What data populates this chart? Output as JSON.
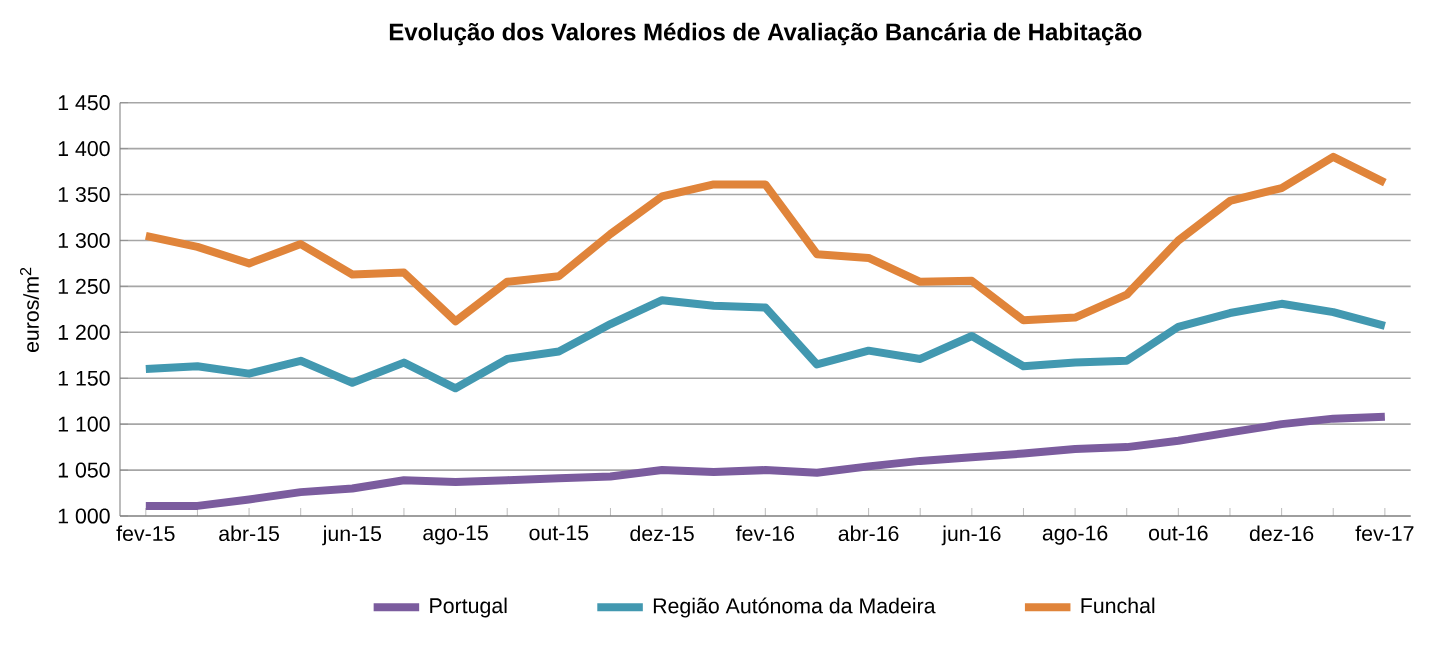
{
  "chart_data": {
    "type": "line",
    "title": "Evolução dos Valores Médios de Avaliação Bancária de Habitação",
    "ylabel": "euros/m$^{2}$",
    "categories": [
      "fev-15",
      null,
      "abr-15",
      null,
      "jun-15",
      null,
      "ago-15",
      null,
      "out-15",
      null,
      "dez-15",
      null,
      "fev-16",
      null,
      "abr-16",
      null,
      "jun-16",
      null,
      "ago-16",
      null,
      "out-16",
      null,
      "dez-16",
      null,
      "fev-17"
    ],
    "series": [
      {
        "name": "Portugal",
        "color": "#7b5c9e",
        "values": [
          1011,
          1011,
          1018,
          1026,
          1030,
          1039,
          1037,
          1039,
          1041,
          1043,
          1050,
          1048,
          1050,
          1047,
          1054,
          1060,
          1064,
          1068,
          1073,
          1075,
          1082,
          1091,
          1100,
          1106,
          1108
        ]
      },
      {
        "name": "Região Autónoma da Madeira",
        "color": "#4298b0",
        "values": [
          1160,
          1163,
          1155,
          1169,
          1145,
          1167,
          1139,
          1171,
          1179,
          1209,
          1235,
          1229,
          1227,
          1165,
          1180,
          1171,
          1196,
          1163,
          1167,
          1169,
          1206,
          1221,
          1231,
          1222,
          1207
        ]
      },
      {
        "name": "Funchal",
        "color": "#e0843a",
        "values": [
          1305,
          1293,
          1275,
          1296,
          1263,
          1265,
          1212,
          1255,
          1261,
          1307,
          1348,
          1361,
          1361,
          1285,
          1281,
          1255,
          1256,
          1213,
          1216,
          1241,
          1300,
          1343,
          1357,
          1391,
          1363
        ]
      }
    ],
    "ylim": [
      1000,
      1450
    ],
    "yticks": [
      {
        "value": 1000,
        "label": "1 000"
      },
      {
        "value": 1050,
        "label": "1 050"
      },
      {
        "value": 1100,
        "label": "1 100"
      },
      {
        "value": 1150,
        "label": "1 150"
      },
      {
        "value": 1200,
        "label": "1 200"
      },
      {
        "value": 1250,
        "label": "1 250"
      },
      {
        "value": 1300,
        "label": "1 300"
      },
      {
        "value": 1350,
        "label": "1 350"
      },
      {
        "value": 1400,
        "label": "1 400"
      },
      {
        "value": 1450,
        "label": "1 450"
      }
    ],
    "grid": "y",
    "legend": "bottom",
    "marker": "none",
    "line_style": "solid"
  }
}
